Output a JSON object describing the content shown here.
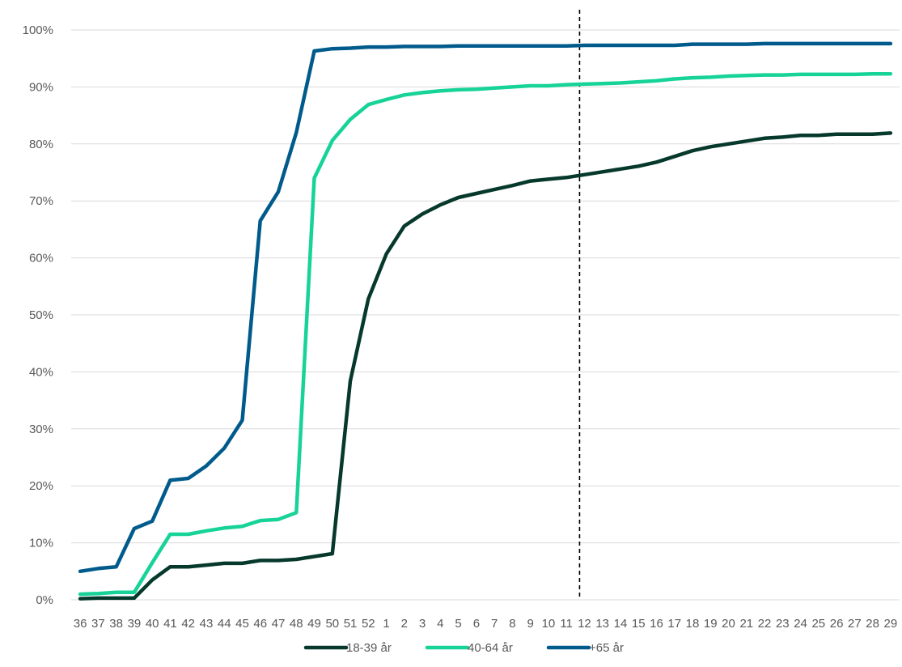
{
  "chart_data": {
    "type": "line",
    "title": "",
    "xlabel": "",
    "ylabel": "",
    "ylim": [
      0,
      1
    ],
    "yticks": [
      0,
      0.1,
      0.2,
      0.3,
      0.4,
      0.5,
      0.6,
      0.7,
      0.8,
      0.9,
      1.0
    ],
    "ytick_labels": [
      "0%",
      "10%",
      "20%",
      "30%",
      "40%",
      "50%",
      "60%",
      "70%",
      "80%",
      "90%",
      "100%"
    ],
    "grid": true,
    "legend_position": "bottom",
    "categories": [
      "36",
      "37",
      "38",
      "39",
      "40",
      "41",
      "42",
      "43",
      "44",
      "45",
      "46",
      "47",
      "48",
      "49",
      "50",
      "51",
      "52",
      "1",
      "2",
      "3",
      "4",
      "5",
      "6",
      "7",
      "8",
      "9",
      "10",
      "11",
      "12",
      "13",
      "14",
      "15",
      "16",
      "17",
      "18",
      "19",
      "20",
      "21",
      "22",
      "23",
      "24",
      "25",
      "26",
      "27",
      "28",
      "29"
    ],
    "vertical_marker": {
      "category": "12",
      "style": "dashed"
    },
    "series": [
      {
        "name": "18-39 år",
        "color": "#06392c",
        "values": [
          0.002,
          0.003,
          0.003,
          0.003,
          0.035,
          0.058,
          0.058,
          0.061,
          0.064,
          0.064,
          0.069,
          0.069,
          0.071,
          0.076,
          0.081,
          0.384,
          0.528,
          0.607,
          0.656,
          0.677,
          0.693,
          0.706,
          0.713,
          0.72,
          0.727,
          0.735,
          0.738,
          0.741,
          0.746,
          0.751,
          0.756,
          0.761,
          0.768,
          0.778,
          0.788,
          0.795,
          0.8,
          0.805,
          0.81,
          0.812,
          0.815,
          0.815,
          0.817,
          0.817,
          0.817,
          0.819
        ]
      },
      {
        "name": "40-64 år",
        "color": "#17d398",
        "values": [
          0.01,
          0.011,
          0.013,
          0.013,
          0.065,
          0.115,
          0.115,
          0.121,
          0.126,
          0.129,
          0.139,
          0.141,
          0.153,
          0.74,
          0.806,
          0.843,
          0.869,
          0.878,
          0.886,
          0.89,
          0.893,
          0.895,
          0.896,
          0.898,
          0.9,
          0.902,
          0.902,
          0.904,
          0.905,
          0.906,
          0.907,
          0.909,
          0.911,
          0.914,
          0.916,
          0.917,
          0.919,
          0.92,
          0.921,
          0.921,
          0.922,
          0.922,
          0.922,
          0.922,
          0.923,
          0.923
        ]
      },
      {
        "name": "+65 år",
        "color": "#005b8c",
        "values": [
          0.05,
          0.055,
          0.058,
          0.125,
          0.138,
          0.21,
          0.213,
          0.235,
          0.266,
          0.315,
          0.665,
          0.716,
          0.82,
          0.963,
          0.967,
          0.968,
          0.97,
          0.97,
          0.971,
          0.971,
          0.971,
          0.972,
          0.972,
          0.972,
          0.972,
          0.972,
          0.972,
          0.972,
          0.973,
          0.973,
          0.973,
          0.973,
          0.973,
          0.973,
          0.975,
          0.975,
          0.975,
          0.975,
          0.976,
          0.976,
          0.976,
          0.976,
          0.976,
          0.976,
          0.976,
          0.976
        ]
      }
    ]
  }
}
